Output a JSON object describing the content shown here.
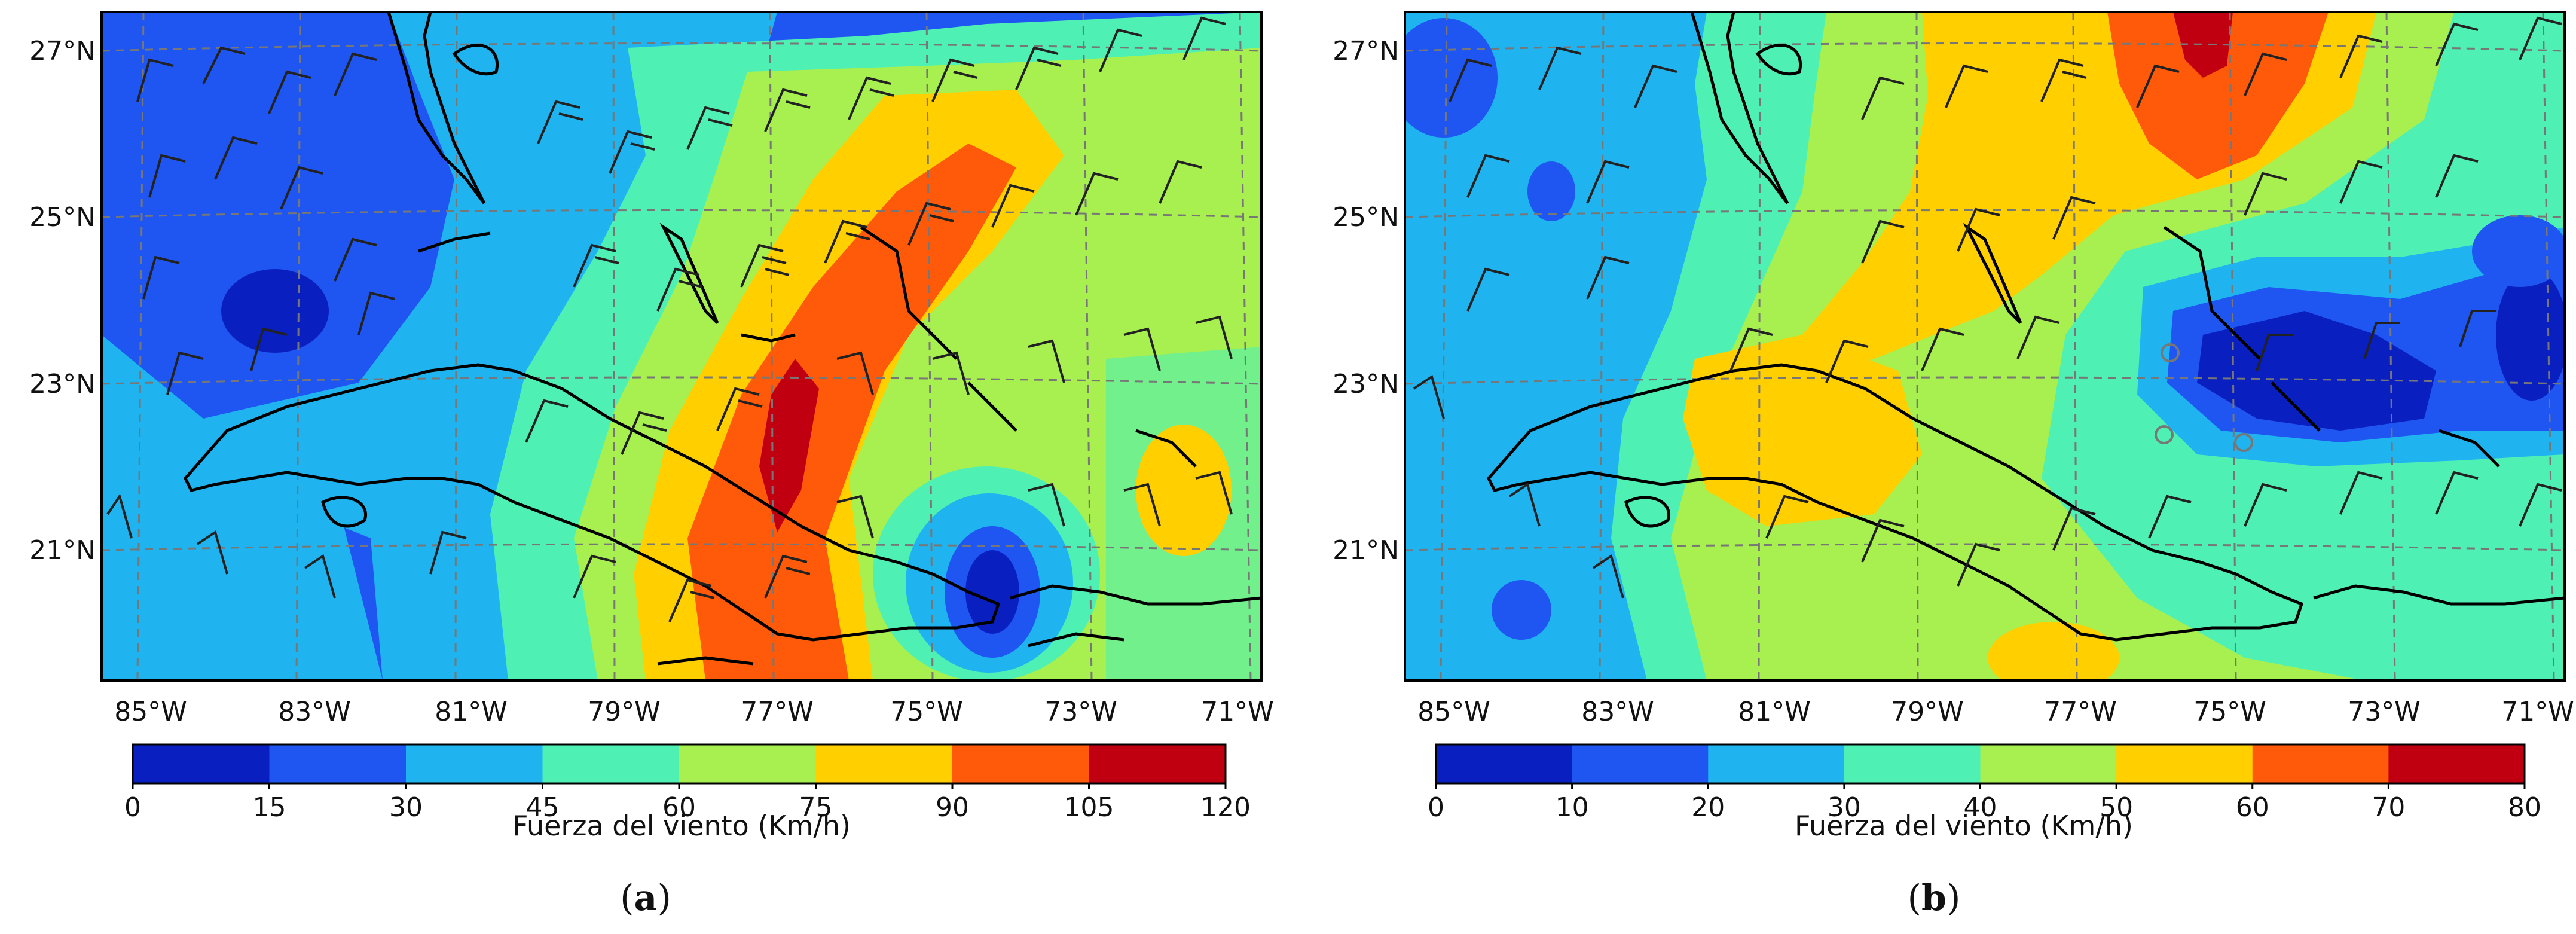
{
  "panels": [
    {
      "id": "a",
      "caption_open": "(",
      "caption_letter": "a",
      "caption_close": ")",
      "lat_labels": [
        "27°N",
        "25°N",
        "23°N",
        "21°N"
      ],
      "lon_labels": [
        "85°W",
        "83°W",
        "81°W",
        "79°W",
        "77°W",
        "75°W",
        "73°W",
        "71°W"
      ],
      "colorbar": {
        "title": "Fuerza del viento (Km/h)",
        "ticks": [
          "0",
          "15",
          "30",
          "45",
          "60",
          "75",
          "90",
          "105",
          "120"
        ],
        "colors": [
          "#0a1fbf",
          "#1f55f0",
          "#1fb4f0",
          "#4ff0b4",
          "#a7f04f",
          "#ffcf00",
          "#ff5a0a",
          "#c00010"
        ]
      }
    },
    {
      "id": "b",
      "caption_open": "(",
      "caption_letter": "b",
      "caption_close": ")",
      "lat_labels": [
        "27°N",
        "25°N",
        "23°N",
        "21°N"
      ],
      "lon_labels": [
        "85°W",
        "83°W",
        "81°W",
        "79°W",
        "77°W",
        "75°W",
        "73°W",
        "71°W"
      ],
      "colorbar": {
        "title": "Fuerza del viento (Km/h)",
        "ticks": [
          "0",
          "10",
          "20",
          "30",
          "40",
          "50",
          "60",
          "70",
          "80"
        ],
        "colors": [
          "#0a1fbf",
          "#1f55f0",
          "#1fb4f0",
          "#4ff0b4",
          "#a7f04f",
          "#ffcf00",
          "#ff5a0a",
          "#c00010"
        ]
      }
    }
  ]
}
